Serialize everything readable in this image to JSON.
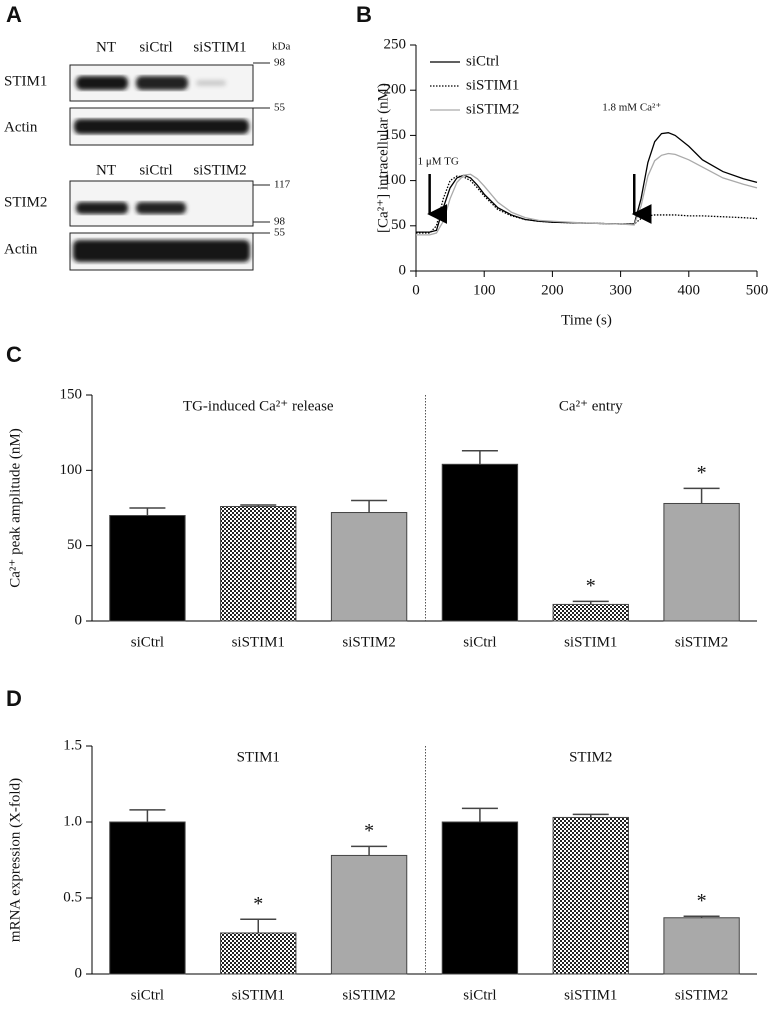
{
  "blot": {
    "panel_label": "A",
    "kda_label": "kDa",
    "groups": [
      {
        "lanes": [
          "NT",
          "siCtrl",
          "siSTIM1"
        ],
        "rows": [
          "STIM1",
          "Actin"
        ],
        "markers": [
          98,
          55
        ]
      },
      {
        "lanes": [
          "NT",
          "siCtrl",
          "siSTIM2"
        ],
        "rows": [
          "STIM2",
          "Actin"
        ],
        "markers": [
          117,
          98,
          55
        ]
      }
    ]
  },
  "chart_data": [
    {
      "type": "line",
      "panel_label": "B",
      "x_label": "Time (s)",
      "y_label": "[Ca²⁺] intracellular (nM)",
      "x": [
        0,
        10,
        20,
        30,
        40,
        50,
        60,
        70,
        80,
        90,
        100,
        120,
        140,
        160,
        180,
        200,
        250,
        300,
        320,
        330,
        340,
        350,
        360,
        370,
        380,
        400,
        420,
        450,
        480,
        500
      ],
      "series": [
        {
          "name": "siCtrl",
          "color": "#000000",
          "style": "solid",
          "values": [
            43,
            43,
            43,
            45,
            70,
            92,
            103,
            106,
            103,
            95,
            85,
            70,
            62,
            57,
            55,
            54,
            53,
            52,
            52,
            80,
            120,
            143,
            152,
            153,
            150,
            138,
            123,
            110,
            102,
            98
          ]
        },
        {
          "name": "siSTIM1",
          "color": "#000000",
          "style": "dotted",
          "values": [
            42,
            42,
            42,
            50,
            80,
            100,
            105,
            104,
            100,
            92,
            83,
            68,
            61,
            57,
            55,
            54,
            53,
            52,
            52,
            58,
            61,
            62,
            62,
            62,
            62,
            61,
            61,
            60,
            59,
            58
          ]
        },
        {
          "name": "siSTIM2",
          "color": "#aaaaaa",
          "style": "solid",
          "values": [
            40,
            40,
            40,
            42,
            55,
            80,
            98,
            106,
            107,
            102,
            94,
            76,
            65,
            59,
            56,
            55,
            53,
            52,
            51,
            72,
            105,
            122,
            128,
            130,
            129,
            123,
            115,
            103,
            96,
            92
          ]
        }
      ],
      "annotations": [
        {
          "text": "1 μM TG",
          "x": 20
        },
        {
          "text": "1.8 mM Ca²⁺",
          "x": 320
        }
      ],
      "xlim": [
        0,
        500
      ],
      "xticks": [
        0,
        100,
        200,
        300,
        400,
        500
      ],
      "ylim": [
        0,
        250
      ],
      "yticks": [
        0,
        50,
        100,
        150,
        200,
        250
      ]
    },
    {
      "type": "bar",
      "panel_label": "C",
      "y_label": "Ca²⁺ peak amplitude (nM)",
      "group_labels": [
        "TG-induced Ca²⁺ release",
        "Ca²⁺ entry"
      ],
      "categories": [
        "siCtrl",
        "siSTIM1",
        "siSTIM2",
        "siCtrl",
        "siSTIM1",
        "siSTIM2"
      ],
      "values": [
        70,
        76,
        72,
        104,
        11,
        78
      ],
      "errors": [
        5,
        1,
        8,
        9,
        2,
        10
      ],
      "stars": [
        null,
        null,
        null,
        null,
        "*",
        "*"
      ],
      "colors": [
        "#000000",
        "checkered",
        "#a9a9a9",
        "#000000",
        "checkered",
        "#a9a9a9"
      ],
      "ylim": [
        0,
        150
      ],
      "yticks": [
        0,
        50,
        100,
        150
      ]
    },
    {
      "type": "bar",
      "panel_label": "D",
      "y_label": "mRNA expression (X-fold)",
      "group_labels": [
        "STIM1",
        "STIM2"
      ],
      "categories": [
        "siCtrl",
        "siSTIM1",
        "siSTIM2",
        "siCtrl",
        "siSTIM1",
        "siSTIM2"
      ],
      "values": [
        1.0,
        0.27,
        0.78,
        1.0,
        1.03,
        0.37
      ],
      "errors": [
        0.08,
        0.09,
        0.06,
        0.09,
        0.02,
        0.01
      ],
      "stars": [
        null,
        "*",
        "*",
        null,
        null,
        "*"
      ],
      "colors": [
        "#000000",
        "checkered",
        "#a9a9a9",
        "#000000",
        "checkered",
        "#a9a9a9"
      ],
      "ylim": [
        0,
        1.5
      ],
      "yticks": [
        0,
        0.5,
        {
          "value": 1,
          "label": "1.0"
        },
        1.5
      ]
    }
  ]
}
